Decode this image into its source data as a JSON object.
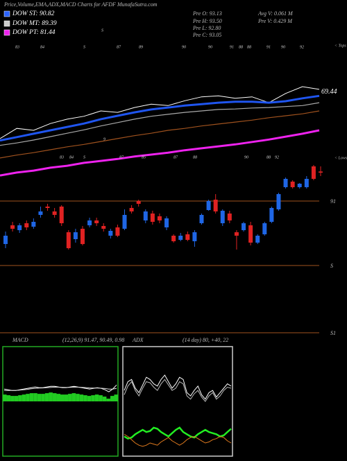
{
  "header": {
    "title": "Price,Volume,EMA,ADX,MACD Charts for AFDF MunafaSutra.com",
    "legend": [
      {
        "label": "DOW ST: 90.82",
        "color": "#2a62ff"
      },
      {
        "label": "DOW MT: 89.39",
        "color": "#cccccc"
      },
      {
        "label": "DOW PT: 81.44",
        "color": "#ee22ee"
      }
    ],
    "info": [
      "Pre  O: 93.13",
      "Pre  H: 93.50",
      "Pre  L: 92.80",
      "Pre  C: 93.05",
      "Avg  V: 0.061 M",
      "Pre  V: 0.429 M"
    ]
  },
  "chart_data": [
    {
      "type": "candlestick",
      "up_color": "#1f66e5",
      "down_color": "#e02222",
      "ylim": [
        80.75,
        102.5
      ],
      "open": [
        87.9,
        89.25,
        88.9,
        89.4,
        89.15,
        90.0,
        90.6,
        90.25,
        90.6,
        88.75,
        88.25,
        89.0,
        89.25,
        89.6,
        89.2,
        88.5,
        89.1,
        89.0,
        90.5,
        91.0,
        89.6,
        90.1,
        89.9,
        89.1,
        88.5,
        88.2,
        88.6,
        88.1,
        89.4,
        90.35,
        91.1,
        89.4,
        90.1,
        88.75,
        88.9,
        89.25,
        88.0,
        88.6,
        89.5,
        90.4,
        92.0,
        92.4,
        92.0,
        92.0,
        93.5,
        93.13
      ],
      "high": [
        88.8,
        89.5,
        89.4,
        89.6,
        89.75,
        90.6,
        90.8,
        90.5,
        90.7,
        88.9,
        89.0,
        89.2,
        89.8,
        89.8,
        89.4,
        89.0,
        89.3,
        90.4,
        90.7,
        91.1,
        90.4,
        90.3,
        90.1,
        89.9,
        88.6,
        88.7,
        88.8,
        88.9,
        90.1,
        91.1,
        91.5,
        90.4,
        90.3,
        88.9,
        89.5,
        89.5,
        88.6,
        89.5,
        90.6,
        91.6,
        92.7,
        92.5,
        92.3,
        92.8,
        93.6,
        93.5
      ],
      "low": [
        87.6,
        88.8,
        88.7,
        88.9,
        89.0,
        89.8,
        90.3,
        89.8,
        89.2,
        87.5,
        88.0,
        87.8,
        89.1,
        89.2,
        88.8,
        88.3,
        88.4,
        88.9,
        90.1,
        90.6,
        89.4,
        89.3,
        89.4,
        88.9,
        88.0,
        88.1,
        88.1,
        87.7,
        89.3,
        90.3,
        90.1,
        89.2,
        89.4,
        87.5,
        88.8,
        87.8,
        87.9,
        88.5,
        89.4,
        90.3,
        91.9,
        91.9,
        91.9,
        91.9,
        92.5,
        92.8
      ],
      "close": [
        88.5,
        89.0,
        89.25,
        89.1,
        89.5,
        90.25,
        90.5,
        90.0,
        89.4,
        87.6,
        88.75,
        87.9,
        89.6,
        89.4,
        89.0,
        88.85,
        88.5,
        90.0,
        90.25,
        90.8,
        90.25,
        89.5,
        89.6,
        89.75,
        88.1,
        88.5,
        88.2,
        88.75,
        90.0,
        91.0,
        90.25,
        90.3,
        89.6,
        88.5,
        89.4,
        88.0,
        88.5,
        89.4,
        90.5,
        91.5,
        92.6,
        92.0,
        92.25,
        92.6,
        92.6,
        93.05
      ],
      "levels": [
        91,
        {
          "value": 86.35,
          "label": "S"
        },
        {
          "value": 81.5,
          "label": "S1"
        }
      ],
      "level_color": "#a0521e",
      "tops_label": "< Tops",
      "lows_label": "< Lows",
      "top_numbers": [
        "83",
        "84",
        "S",
        "87",
        "89",
        "90",
        "90",
        "91",
        "88",
        "88",
        "91",
        "90",
        "92"
      ],
      "low_numbers": [
        "83",
        "84",
        "S",
        "87",
        "85",
        "87",
        "88",
        "90",
        "88",
        "92"
      ],
      "misc_numbers": [
        "S",
        "9"
      ],
      "overlay": {
        "ylim": [
          50,
          80
        ],
        "series": [
          {
            "color": "#ffffff",
            "width": 1,
            "values": [
              59.3,
              61.4,
              61.0,
              62.4,
              63.3,
              63.9,
              65.0,
              64.7,
              65.7,
              66.4,
              66.1,
              67.1,
              67.9,
              68.1,
              67.6,
              67.9,
              66.7,
              68.6,
              70.0,
              69.44
            ]
          },
          {
            "color": "#aaaaaa",
            "width": 1.2,
            "values": [
              57.9,
              58.4,
              59.0,
              59.7,
              60.4,
              61.1,
              61.9,
              62.6,
              63.3,
              63.9,
              64.3,
              64.7,
              65.0,
              65.3,
              65.4,
              65.6,
              65.7,
              65.9,
              66.1,
              66.7
            ]
          },
          {
            "color": "#1f55f0",
            "width": 3,
            "values": [
              58.9,
              59.6,
              60.3,
              61.0,
              61.7,
              62.4,
              63.3,
              64.0,
              64.7,
              65.3,
              65.7,
              66.1,
              66.4,
              66.7,
              66.9,
              66.9,
              66.7,
              67.0,
              67.6,
              68.1
            ]
          },
          {
            "color": "#a0521e",
            "width": 1.2,
            "values": [
              55.3,
              55.9,
              56.4,
              57.0,
              57.6,
              58.1,
              58.7,
              59.3,
              59.9,
              60.4,
              61.0,
              61.4,
              61.9,
              62.3,
              62.7,
              63.1,
              63.6,
              64.0,
              64.4,
              65.0
            ]
          },
          {
            "color": "#ee22ee",
            "width": 3,
            "values": [
              51.7,
              52.3,
              52.7,
              53.3,
              53.7,
              54.3,
              54.7,
              55.1,
              55.6,
              56.0,
              56.4,
              56.9,
              57.3,
              57.7,
              58.1,
              58.6,
              59.1,
              59.7,
              60.3,
              61.0
            ]
          }
        ]
      }
    },
    {
      "type": "macd",
      "title": "MACD",
      "params": "(12,26,9) 91.47, 90.49, 0.98",
      "ylim": [
        -4,
        4
      ],
      "border_color": "#22aa22",
      "series": [
        {
          "color": "#ffffff",
          "values": [
            0.9,
            0.85,
            0.8,
            0.8,
            0.85,
            0.9,
            0.95,
            1.0,
            1.05,
            1.0,
            1.0,
            1.05,
            1.1,
            1.1,
            1.05,
            1.0,
            1.0,
            1.05,
            1.1,
            1.05,
            1.0,
            0.95,
            0.9,
            0.95,
            1.0,
            0.95,
            0.85,
            0.7,
            0.9,
            1.2
          ]
        },
        {
          "color": "#dddddd",
          "values": [
            0.8,
            0.8,
            0.8,
            0.8,
            0.82,
            0.85,
            0.88,
            0.92,
            0.95,
            0.97,
            0.98,
            1.0,
            1.02,
            1.04,
            1.04,
            1.03,
            1.02,
            1.03,
            1.04,
            1.04,
            1.03,
            1.01,
            0.98,
            0.97,
            0.97,
            0.96,
            0.94,
            0.9,
            0.9,
            0.95
          ]
        }
      ],
      "histogram": {
        "color": "#22cc22",
        "values": [
          0.5,
          0.45,
          0.4,
          0.4,
          0.45,
          0.5,
          0.55,
          0.6,
          0.6,
          0.55,
          0.55,
          0.6,
          0.65,
          0.6,
          0.55,
          0.5,
          0.5,
          0.55,
          0.6,
          0.55,
          0.5,
          0.45,
          0.4,
          0.45,
          0.5,
          0.45,
          0.35,
          0.2,
          0.4,
          0.5
        ]
      }
    },
    {
      "type": "adx",
      "title": "ADX",
      "params": "(14 day) 80, +40, 22",
      "ylim": [
        0,
        100
      ],
      "border_color": "#cccccc",
      "series": [
        {
          "color": "#ffffff",
          "width": 1,
          "values": [
            60,
            68,
            70,
            62,
            58,
            65,
            72,
            70,
            66,
            64,
            70,
            74,
            68,
            62,
            66,
            72,
            70,
            58,
            55,
            60,
            64,
            56,
            52,
            58,
            60,
            54,
            58,
            62,
            66,
            64
          ]
        },
        {
          "color": "#bbbbbb",
          "width": 1,
          "values": [
            56,
            64,
            68,
            60,
            55,
            62,
            68,
            67,
            63,
            60,
            66,
            70,
            65,
            60,
            62,
            68,
            66,
            55,
            52,
            57,
            60,
            54,
            50,
            55,
            58,
            52,
            55,
            60,
            63,
            62
          ]
        },
        {
          "color": "#22ee22",
          "width": 2.5,
          "values": [
            18,
            16,
            17,
            20,
            22,
            24,
            22,
            23,
            26,
            25,
            22,
            20,
            18,
            21,
            24,
            26,
            22,
            20,
            18,
            17,
            20,
            22,
            24,
            22,
            21,
            20,
            18,
            19,
            22,
            25
          ]
        },
        {
          "color": "#e07a1e",
          "width": 1,
          "values": [
            20,
            18,
            15,
            12,
            10,
            9,
            10,
            12,
            11,
            10,
            13,
            15,
            17,
            14,
            12,
            10,
            12,
            15,
            17,
            18,
            16,
            14,
            12,
            13,
            15,
            16,
            18,
            17,
            14,
            12
          ]
        }
      ]
    }
  ]
}
